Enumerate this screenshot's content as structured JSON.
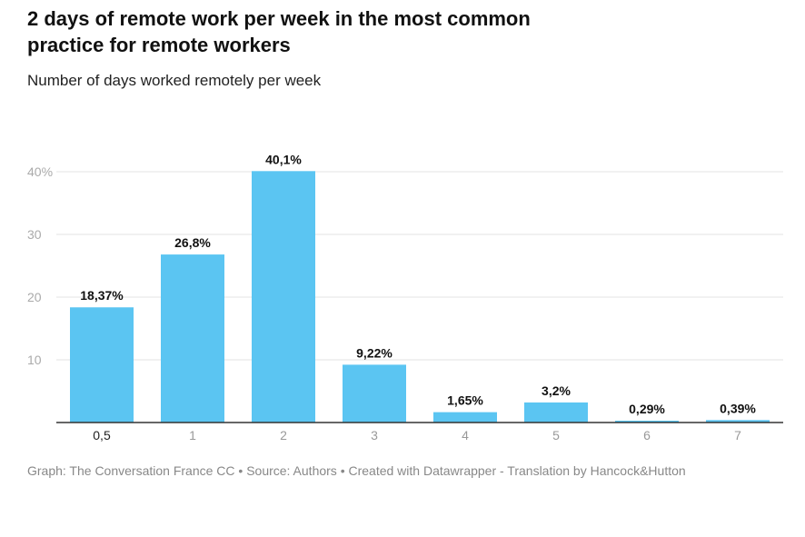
{
  "title": "2 days of remote work per week in the most common practice for remote workers",
  "subtitle": "Number of days worked remotely per week",
  "footer": "Graph: The Conversation France CC • Source: Authors •  Created with Datawrapper - Translation by Hancock&Hutton",
  "chart_data": {
    "type": "bar",
    "categories": [
      "0,5",
      "1",
      "2",
      "3",
      "4",
      "5",
      "6",
      "7"
    ],
    "values": [
      18.37,
      26.8,
      40.1,
      9.22,
      1.65,
      3.2,
      0.29,
      0.39
    ],
    "data_labels": [
      "18,37%",
      "26,8%",
      "40,1%",
      "9,22%",
      "1,65%",
      "3,2%",
      "0,29%",
      "0,39%"
    ],
    "y_ticks": [
      10,
      20,
      30,
      40
    ],
    "y_tick_labels": [
      "10",
      "20",
      "30",
      "40%"
    ],
    "ylim": [
      0,
      40
    ],
    "xlabel": "",
    "ylabel": "",
    "grid": true,
    "bar_color": "#5bc5f2"
  }
}
